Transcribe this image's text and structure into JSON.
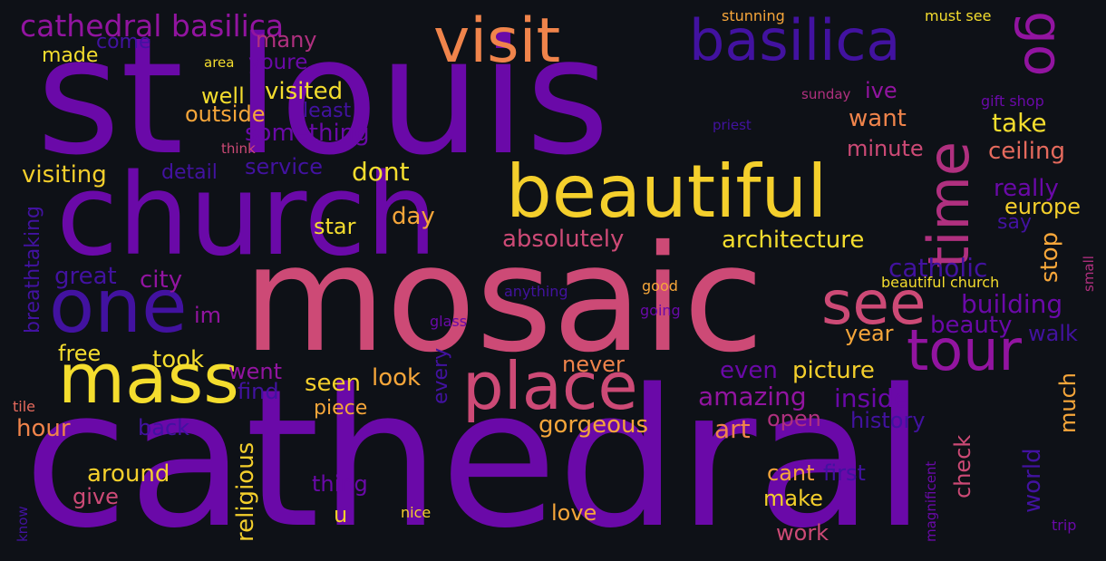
{
  "colors": {
    "background": "#0e1117",
    "deep_purple": "#4212a0",
    "purple": "#6a09a8",
    "violet": "#9214a0",
    "magenta": "#b0307f",
    "pink": "#cd4a76",
    "coral": "#e56a5d",
    "orange": "#f0844b",
    "amber": "#f6a63a",
    "yellow": "#f4dd2e"
  },
  "words": {
    "st_louis": "st louis",
    "cathedral": "cathedral",
    "mosaic": "mosaic",
    "church": "church",
    "beautiful": "beautiful",
    "visit": "visit",
    "basilica": "basilica",
    "go": "go",
    "time": "time",
    "one": "one",
    "mass": "mass",
    "place": "place",
    "see": "see",
    "tour": "tour",
    "cathedral_basilica": "cathedral basilica",
    "come": "come",
    "many": "many",
    "made": "made",
    "area": "area",
    "youre": "youre",
    "well": "well",
    "visited": "visited",
    "outside": "outside",
    "least": "least",
    "something": "something",
    "think": "think",
    "visiting": "visiting",
    "detail": "detail",
    "service": "service",
    "dont": "dont",
    "stunning": "stunning",
    "must_see": "must see",
    "sunday": "sunday",
    "gift_shop": "gift shop",
    "priest": "priest",
    "ive": "ive",
    "want": "want",
    "take": "take",
    "minute": "minute",
    "ceiling": "ceiling",
    "really": "really",
    "europe": "europe",
    "say": "say",
    "stop": "stop",
    "small": "small",
    "catholic": "catholic",
    "building": "building",
    "beauty": "beauty",
    "walk": "walk",
    "year": "year",
    "beautiful_church": "beautiful church",
    "good": "good",
    "going": "going",
    "anything": "anything",
    "glass": "glass",
    "breathtaking": "breathtaking",
    "star": "star",
    "day": "day",
    "absolutely": "absolutely",
    "architecture": "architecture",
    "great": "great",
    "city": "city",
    "im": "im",
    "free": "free",
    "took": "took",
    "went": "went",
    "find": "find",
    "seen": "seen",
    "look": "look",
    "every": "every",
    "never": "never",
    "piece": "piece",
    "hour": "hour",
    "back": "back",
    "tile": "tile",
    "even": "even",
    "picture": "picture",
    "amazing": "amazing",
    "inside": "inside",
    "gorgeous": "gorgeous",
    "art": "art",
    "open": "open",
    "history": "history",
    "much": "much",
    "world": "world",
    "check": "check",
    "around": "around",
    "give": "give",
    "religious": "religious",
    "thing": "thing",
    "u": "u",
    "nice": "nice",
    "love": "love",
    "cant": "cant",
    "first": "first",
    "make": "make",
    "work": "work",
    "magnificent": "magnificent",
    "trip": "trip",
    "know": "know"
  }
}
